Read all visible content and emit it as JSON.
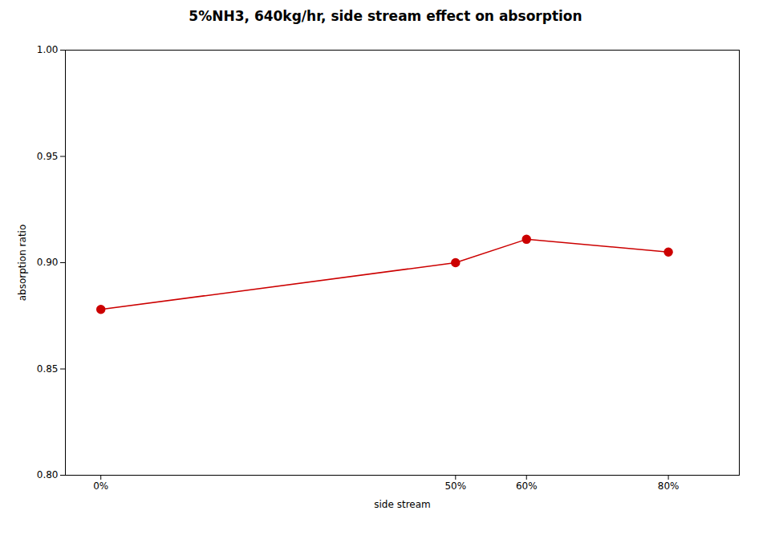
{
  "chart_data": {
    "type": "line",
    "title": "5%NH3, 640kg/hr, side stream effect on absorption",
    "xlabel": "side stream",
    "ylabel": "absorption ratio",
    "x": [
      0,
      50,
      60,
      80
    ],
    "values": [
      0.878,
      0.9,
      0.911,
      0.905
    ],
    "xlim": [
      -5,
      90
    ],
    "xticks": [
      {
        "value": 0,
        "label": "0%"
      },
      {
        "value": 50,
        "label": "50%"
      },
      {
        "value": 60,
        "label": "60%"
      },
      {
        "value": 80,
        "label": "80%"
      }
    ],
    "ylim": [
      0.8,
      1.0
    ],
    "yticks": [
      {
        "value": 0.8,
        "label": "0.80"
      },
      0.85,
      {
        "value": 0.9,
        "label": "0.90"
      },
      0.95,
      {
        "value": 1.0,
        "label": "1.00"
      }
    ],
    "color": "#cc0000",
    "marker": "circle",
    "grid": false
  }
}
